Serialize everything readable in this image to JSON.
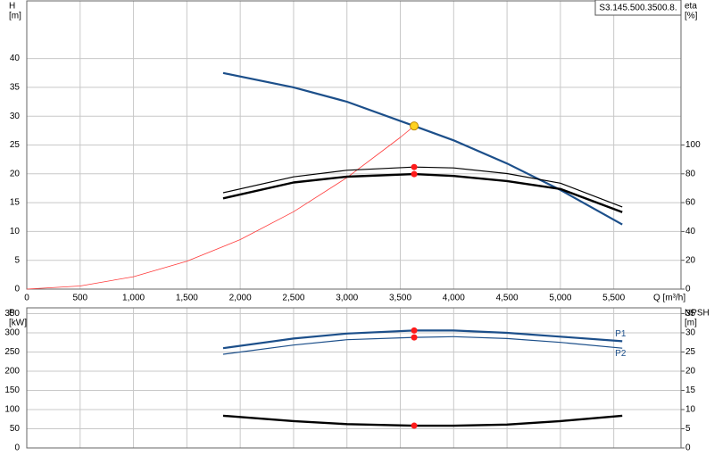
{
  "model": "S3.145.500.3500.8.",
  "chart_data": [
    {
      "type": "line",
      "y_label": "H",
      "y_unit": "[m]",
      "y2_label": "eta",
      "y2_unit": "[%]",
      "x_label": "Q [m³/h]",
      "xlim": [
        0,
        6130
      ],
      "ylim": [
        0,
        50
      ],
      "y2lim": [
        0,
        200
      ],
      "grid": true,
      "xticks": [
        0,
        500,
        {
          "value": 1000,
          "label": "1,000"
        },
        {
          "value": 1500,
          "label": "1,500"
        },
        {
          "value": 2000,
          "label": "2,000"
        },
        {
          "value": 2500,
          "label": "2,500"
        },
        {
          "value": 3000,
          "label": "3,000"
        },
        {
          "value": 3500,
          "label": "3,500"
        },
        {
          "value": 4000,
          "label": "4,000"
        },
        {
          "value": 4500,
          "label": "4,500"
        },
        {
          "value": 5000,
          "label": "5,000"
        },
        {
          "value": 5500,
          "label": "5,500"
        }
      ],
      "yticks": [
        0,
        5,
        10,
        15,
        20,
        25,
        30,
        35,
        40
      ],
      "y2ticks": [
        0,
        20,
        40,
        60,
        80,
        100
      ],
      "series": [
        {
          "color": "#ff3a3a",
          "line_width": 0.8,
          "x": [
            0,
            500,
            1000,
            1500,
            2000,
            2500,
            3000,
            3500,
            3630
          ],
          "values": [
            0,
            0.54,
            2.15,
            4.83,
            8.59,
            13.42,
            19.33,
            26.31,
            28.3
          ]
        },
        {
          "color": "#1c4f8a",
          "line_width": 2.2,
          "x": [
            1840,
            2500,
            3000,
            3630,
            4000,
            4500,
            5000,
            5580
          ],
          "values": [
            37.5,
            35,
            32.5,
            28.3,
            25.8,
            21.8,
            17.2,
            11.2
          ]
        },
        {
          "color": "#000000",
          "line_width": 1.2,
          "axis": "y2",
          "x": [
            1840,
            2500,
            3000,
            3630,
            4000,
            4500,
            5000,
            5580
          ],
          "values": [
            66.9,
            77.9,
            82.5,
            84.7,
            84.1,
            80.2,
            73.5,
            57
          ]
        },
        {
          "color": "#000000",
          "line_width": 2.4,
          "axis": "y2",
          "x": [
            1840,
            2500,
            3000,
            3630,
            4000,
            4500,
            5000,
            5580
          ],
          "values": [
            63,
            74,
            78,
            79.8,
            78.5,
            75,
            69.5,
            53.4
          ]
        },
        {
          "style": "point",
          "color": "#ffd21f",
          "x": [
            3630
          ],
          "values": [
            28.3
          ]
        },
        {
          "style": "point",
          "color": "#ff1a1a",
          "axis": "y2",
          "x": [
            3630,
            3630
          ],
          "values": [
            84.7,
            79.8
          ]
        }
      ]
    },
    {
      "type": "line",
      "y_label": "P",
      "y_unit": "[kW]",
      "y2_label": "NPSH",
      "y2_unit": "[m]",
      "xlim": [
        0,
        6130
      ],
      "ylim": [
        0,
        365
      ],
      "y2lim": [
        0,
        36.5
      ],
      "grid": true,
      "yticks": [
        0,
        50,
        100,
        150,
        200,
        250,
        300,
        350
      ],
      "y2ticks": [
        0,
        5,
        10,
        15,
        20,
        25,
        30,
        35
      ],
      "series": [
        {
          "name": "P1",
          "color": "#1c4f8a",
          "line_width": 2.2,
          "x": [
            1840,
            2500,
            3000,
            3630,
            4000,
            4500,
            5000,
            5580
          ],
          "values": [
            260,
            285,
            298,
            306,
            306,
            300,
            290,
            278
          ]
        },
        {
          "name": "P2",
          "color": "#1c4f8a",
          "line_width": 1.2,
          "x": [
            1840,
            2500,
            3000,
            3630,
            4000,
            4500,
            5000,
            5580
          ],
          "values": [
            244,
            268,
            282,
            288,
            290,
            285,
            275,
            260
          ]
        },
        {
          "color": "#000000",
          "line_width": 2.4,
          "axis": "y2",
          "x": [
            1840,
            2500,
            3000,
            3630,
            4000,
            4500,
            5000,
            5580
          ],
          "values": [
            8.4,
            7.0,
            6.2,
            5.8,
            5.8,
            6.1,
            7.0,
            8.4
          ]
        },
        {
          "style": "point",
          "color": "#ff1a1a",
          "x": [
            3630,
            3630
          ],
          "values": [
            306,
            288
          ]
        },
        {
          "style": "point",
          "color": "#ff1a1a",
          "axis": "y2",
          "x": [
            3630
          ],
          "values": [
            5.8
          ]
        }
      ]
    }
  ]
}
